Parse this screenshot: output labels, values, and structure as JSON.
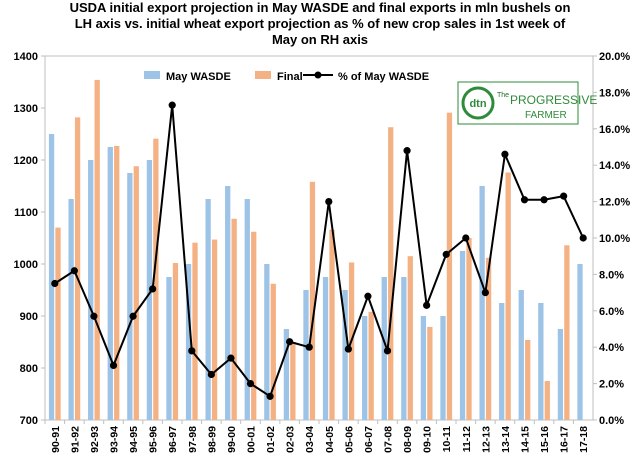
{
  "chart_data": {
    "type": "bar",
    "title_lines": [
      "USDA initial export projection in May WASDE  and final exports in mln bushels on",
      "LH  axis vs. initial wheat export projection as % of new crop sales in 1st week of",
      "May on RH axis"
    ],
    "categories": [
      "90-91",
      "91-92",
      "92-93",
      "93-94",
      "94-95",
      "95-96",
      "96-97",
      "97-98",
      "98-99",
      "99-00",
      "00-01",
      "01-02",
      "02-03",
      "03-04",
      "04-05",
      "05-06",
      "06-07",
      "07-08",
      "08-09",
      "09-10",
      "10-11",
      "11-12",
      "12-13",
      "13-14",
      "14-15",
      "15-16",
      "16-17",
      "17-18"
    ],
    "series": [
      {
        "name": "May WASDE",
        "type": "bar",
        "axis": "left",
        "color": "#9dc3e6",
        "values": [
          1250,
          1125,
          1200,
          1225,
          1175,
          1200,
          975,
          1000,
          1125,
          1150,
          1125,
          1000,
          875,
          950,
          975,
          950,
          900,
          975,
          975,
          900,
          900,
          1025,
          1150,
          925,
          950,
          925,
          875,
          1000
        ]
      },
      {
        "name": "Final",
        "type": "bar",
        "axis": "left",
        "color": "#f4b183",
        "values": [
          1070,
          1282,
          1354,
          1227,
          1188,
          1241,
          1002,
          1041,
          1047,
          1087,
          1062,
          962,
          850,
          1158,
          1066,
          1003,
          908,
          1263,
          1015,
          879,
          1291,
          1050,
          1012,
          1176,
          854,
          775,
          1036,
          null
        ]
      },
      {
        "name": "% of May WASDE",
        "type": "line",
        "axis": "right",
        "color": "#000000",
        "values": [
          7.5,
          8.2,
          5.7,
          3.0,
          5.7,
          7.2,
          17.3,
          3.8,
          2.5,
          3.4,
          2.0,
          1.3,
          4.3,
          4.0,
          12.0,
          3.9,
          6.8,
          3.8,
          14.8,
          6.3,
          9.1,
          10.0,
          7.0,
          14.6,
          12.1,
          12.1,
          12.3,
          10.0
        ]
      }
    ],
    "ylim": [
      700,
      1400
    ],
    "yticks": [
      "700",
      "800",
      "900",
      "1000",
      "1100",
      "1200",
      "1300",
      "1400"
    ],
    "y2lim": [
      0,
      20
    ],
    "y2ticks": [
      "0.0%",
      "2.0%",
      "4.0%",
      "6.0%",
      "8.0%",
      "10.0%",
      "12.0%",
      "14.0%",
      "16.0%",
      "18.0%",
      "20.0%"
    ],
    "xlabel": "",
    "ylabel": "",
    "grid": false,
    "legend_position": "top"
  },
  "logo": {
    "badge_text": "dtn",
    "brand_line1": "PROGRESSIVE",
    "brand_line2": "FARMER",
    "brand_article": "The",
    "colors": {
      "green": "#2e8b3a",
      "dark_green": "#1f6e2a"
    }
  }
}
